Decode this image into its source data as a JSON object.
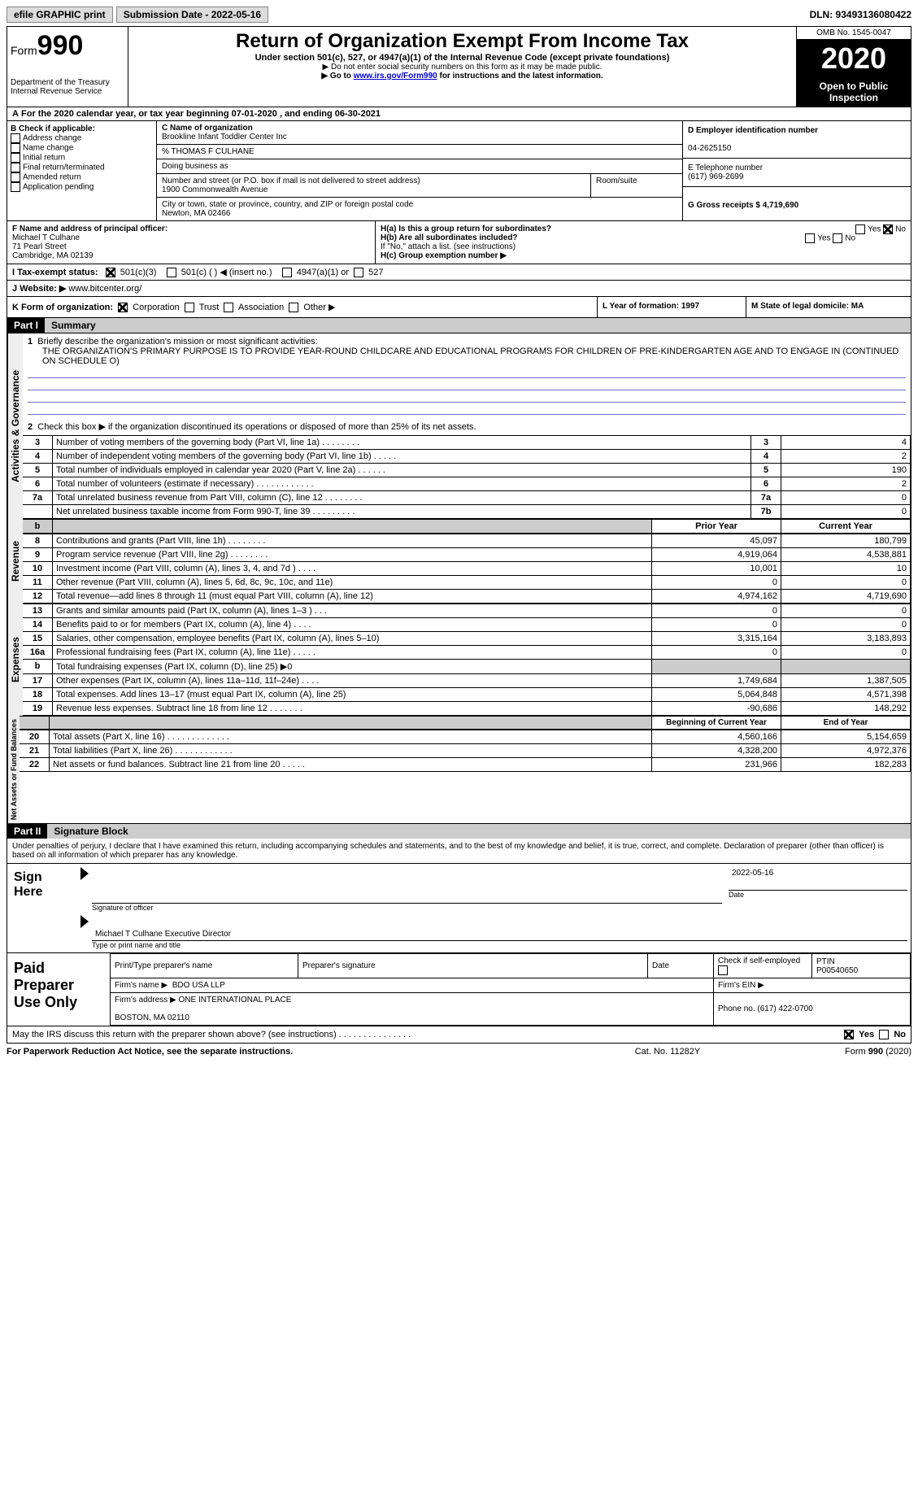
{
  "topbar": {
    "efile": "efile GRAPHIC print",
    "submission_label": "Submission Date - 2022-05-16",
    "dln": "DLN: 93493136080422"
  },
  "header": {
    "form_prefix": "Form",
    "form_number": "990",
    "dept": "Department of the Treasury\nInternal Revenue Service",
    "title": "Return of Organization Exempt From Income Tax",
    "subtitle": "Under section 501(c), 527, or 4947(a)(1) of the Internal Revenue Code (except private foundations)",
    "note1": "Do not enter social security numbers on this form as it may be made public.",
    "note2_pre": "Go to ",
    "note2_link": "www.irs.gov/Form990",
    "note2_post": " for instructions and the latest information.",
    "omb": "OMB No. 1545-0047",
    "year": "2020",
    "public": "Open to Public Inspection"
  },
  "period": {
    "line": "For the 2020 calendar year, or tax year beginning 07-01-2020    , and ending 06-30-2021",
    "prefix": "A"
  },
  "boxB": {
    "title": "B Check if applicable:",
    "opts": [
      "Address change",
      "Name change",
      "Initial return",
      "Final return/terminated",
      "Amended return",
      "Application pending"
    ]
  },
  "boxC": {
    "label": "C Name of organization",
    "name": "Brookline Infant Toddler Center Inc",
    "care": "% THOMAS F CULHANE",
    "dba_label": "Doing business as",
    "addr_label": "Number and street (or P.O. box if mail is not delivered to street address)",
    "room_label": "Room/suite",
    "addr": "1900 Commonwealth Avenue",
    "city_label": "City or town, state or province, country, and ZIP or foreign postal code",
    "city": "Newton, MA   02466"
  },
  "boxD": {
    "label": "D Employer identification number",
    "val": "04-2625150"
  },
  "boxE": {
    "label": "E Telephone number",
    "val": "(617) 969-2699"
  },
  "boxG": {
    "label": "G Gross receipts $ 4,719,690"
  },
  "boxF": {
    "label": "F  Name and address of principal officer:",
    "name": "Michael T Culhane",
    "addr1": "71 Pearl Street",
    "addr2": "Cambridge, MA  02139"
  },
  "boxH": {
    "ha": "H(a)  Is this a group return for subordinates?",
    "hb": "H(b)  Are all subordinates included?",
    "hnote": "If \"No,\" attach a list. (see instructions)",
    "hc": "H(c)  Group exemption number ▶",
    "yes": "Yes",
    "no": "No"
  },
  "lineI": {
    "label": "I    Tax-exempt status:",
    "o1": "501(c)(3)",
    "o2": "501(c) (   ) ◀ (insert no.)",
    "o3": "4947(a)(1) or",
    "o4": "527"
  },
  "lineJ": {
    "label": "J   Website: ▶",
    "val": "  www.bitcenter.org/"
  },
  "lineK": {
    "label": "K Form of organization:",
    "opts": [
      "Corporation",
      "Trust",
      "Association",
      "Other ▶"
    ]
  },
  "lineL": {
    "label": "L Year of formation: 1997"
  },
  "lineM": {
    "label": "M State of legal domicile: MA"
  },
  "part1": {
    "bar": "Part I",
    "title": "Summary",
    "q1": "Briefly describe the organization's mission or most significant activities:",
    "mission": "THE ORGANIZATION'S PRIMARY PURPOSE IS TO PROVIDE YEAR-ROUND CHILDCARE AND EDUCATIONAL PROGRAMS FOR CHILDREN OF PRE-KINDERGARTEN AGE AND TO ENGAGE IN (CONTINUED ON SCHEDULE O)",
    "q2": "Check this box ▶       if the organization discontinued its operations or disposed of more than 25% of its net assets.",
    "rows_gov": [
      {
        "n": "3",
        "d": "Number of voting members of the governing body (Part VI, line 1a)   .     .     .     .     .     .     .     .",
        "b": "3",
        "v": "4"
      },
      {
        "n": "4",
        "d": "Number of independent voting members of the governing body (Part VI, line 1b)    .     .     .     .     .",
        "b": "4",
        "v": "2"
      },
      {
        "n": "5",
        "d": "Total number of individuals employed in calendar year 2020 (Part V, line 2a)   .     .     .     .     .     .",
        "b": "5",
        "v": "190"
      },
      {
        "n": "6",
        "d": "Total number of volunteers (estimate if necessary)    .     .     .     .     .     .     .     .     .     .     .     .",
        "b": "6",
        "v": "2"
      },
      {
        "n": "7a",
        "d": "Total unrelated business revenue from Part VIII, column (C), line 12   .     .     .     .     .     .     .     .",
        "b": "7a",
        "v": "0"
      },
      {
        "n": "",
        "d": "Net unrelated business taxable income from Form 990-T, line 39   .     .     .     .     .     .     .     .     .",
        "b": "7b",
        "v": "0"
      }
    ],
    "col_prior": "Prior Year",
    "col_current": "Current Year",
    "rows_rev": [
      {
        "n": "8",
        "d": "Contributions and grants (Part VIII, line 1h)    .     .     .     .     .     .     .     .",
        "p": "45,097",
        "c": "180,799"
      },
      {
        "n": "9",
        "d": "Program service revenue (Part VIII, line 2g)    .     .     .     .     .     .     .     .",
        "p": "4,919,064",
        "c": "4,538,881"
      },
      {
        "n": "10",
        "d": "Investment income (Part VIII, column (A), lines 3, 4, and 7d )   .     .     .     .",
        "p": "10,001",
        "c": "10"
      },
      {
        "n": "11",
        "d": "Other revenue (Part VIII, column (A), lines 5, 6d, 8c, 9c, 10c, and 11e)",
        "p": "0",
        "c": "0"
      },
      {
        "n": "12",
        "d": "Total revenue—add lines 8 through 11 (must equal Part VIII, column (A), line 12)",
        "p": "4,974,162",
        "c": "4,719,690"
      }
    ],
    "rows_exp": [
      {
        "n": "13",
        "d": "Grants and similar amounts paid (Part IX, column (A), lines 1–3 )   .     .     .",
        "p": "0",
        "c": "0"
      },
      {
        "n": "14",
        "d": "Benefits paid to or for members (Part IX, column (A), line 4)   .     .     .     .",
        "p": "0",
        "c": "0"
      },
      {
        "n": "15",
        "d": "Salaries, other compensation, employee benefits (Part IX, column (A), lines 5–10)",
        "p": "3,315,164",
        "c": "3,183,893"
      },
      {
        "n": "16a",
        "d": "Professional fundraising fees (Part IX, column (A), line 11e)   .     .     .     .     .",
        "p": "0",
        "c": "0"
      },
      {
        "n": "b",
        "d": "Total fundraising expenses (Part IX, column (D), line 25) ▶0",
        "p": "shade",
        "c": "shade"
      },
      {
        "n": "17",
        "d": "Other expenses (Part IX, column (A), lines 11a–11d, 11f–24e)   .     .     .     .",
        "p": "1,749,684",
        "c": "1,387,505"
      },
      {
        "n": "18",
        "d": "Total expenses. Add lines 13–17 (must equal Part IX, column (A), line 25)",
        "p": "5,064,848",
        "c": "4,571,398"
      },
      {
        "n": "19",
        "d": "Revenue less expenses. Subtract line 18 from line 12   .     .     .     .     .     .     .",
        "p": "-90,686",
        "c": "148,292"
      }
    ],
    "col_begin": "Beginning of Current Year",
    "col_end": "End of Year",
    "rows_net": [
      {
        "n": "20",
        "d": "Total assets (Part X, line 16)   .     .     .     .     .     .     .     .     .     .     .     .     .",
        "p": "4,560,166",
        "c": "5,154,659"
      },
      {
        "n": "21",
        "d": "Total liabilities (Part X, line 26)   .     .     .     .     .     .     .     .     .     .     .     .",
        "p": "4,328,200",
        "c": "4,972,376"
      },
      {
        "n": "22",
        "d": "Net assets or fund balances. Subtract line 21 from line 20   .     .     .     .     .",
        "p": "231,966",
        "c": "182,283"
      }
    ],
    "tab_gov": "Activities & Governance",
    "tab_rev": "Revenue",
    "tab_exp": "Expenses",
    "tab_net": "Net Assets or Fund Balances"
  },
  "part2": {
    "bar": "Part II",
    "title": "Signature Block",
    "decl": "Under penalties of perjury, I declare that I have examined this return, including accompanying schedules and statements, and to the best of my knowledge and belief, it is true, correct, and complete. Declaration of preparer (other than officer) is based on all information of which preparer has any knowledge.",
    "sign_here": "Sign Here",
    "sig_officer": "Signature of officer",
    "date": "Date",
    "sig_date": "2022-05-16",
    "officer_name": "Michael T Culhane  Executive Director",
    "type_name": "Type or print name and title",
    "paid": "Paid Preparer Use Only",
    "h_print": "Print/Type preparer's name",
    "h_sig": "Preparer's signature",
    "h_date": "Date",
    "h_check": "Check         if self-employed",
    "h_ptin": "PTIN\nP00540650",
    "firm_name_l": "Firm's name    ▶",
    "firm_name": "BDO USA LLP",
    "firm_ein_l": "Firm's EIN ▶",
    "firm_addr_l": "Firm's address ▶",
    "firm_addr": "ONE INTERNATIONAL PLACE\n\nBOSTON, MA  02110",
    "firm_phone_l": "Phone no. (617) 422-0700",
    "discuss": "May the IRS discuss this return with the preparer shown above? (see instructions)    .     .     .     .     .     .     .     .     .     .     .     .     .     .     .",
    "yes": "Yes",
    "no": "No"
  },
  "footer": {
    "left": "For Paperwork Reduction Act Notice, see the separate instructions.",
    "mid": "Cat. No. 11282Y",
    "right": "Form 990 (2020)"
  }
}
